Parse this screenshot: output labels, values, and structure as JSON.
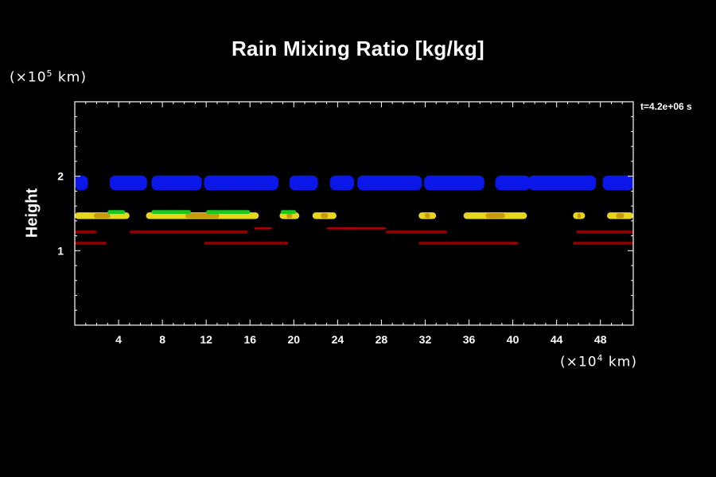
{
  "chart_data": {
    "type": "heatmap",
    "title": "Rain Mixing Ratio [kg/kg]",
    "ylabel": "Height",
    "xlabel": "",
    "x_multiplier": {
      "prefix": "(×10",
      "exp": "4",
      "suffix": " km)"
    },
    "y_multiplier": {
      "prefix": "(×10",
      "exp": "5",
      "suffix": " km)"
    },
    "time_label": "t=4.2e+06 s",
    "xlim": [
      0,
      51
    ],
    "ylim": [
      0,
      3
    ],
    "x_ticks": [
      4,
      8,
      12,
      16,
      20,
      24,
      28,
      32,
      36,
      40,
      44,
      48
    ],
    "x_tick_labels": [
      "4",
      "8",
      "12",
      "16",
      "20",
      "24",
      "28",
      "32",
      "36",
      "40",
      "44",
      "48"
    ],
    "y_ticks": [
      1,
      2
    ],
    "y_tick_labels": [
      "1",
      "2"
    ],
    "colors": {
      "high": "#0b17e8",
      "mid_yellow": "#e6d620",
      "mid_orange": "#c89a14",
      "mid_green": "#19c819",
      "low": "#8c0000",
      "low_dot": "#a80000"
    },
    "bands": [
      {
        "level": "high",
        "y": 1.91,
        "thickness": 0.2,
        "segments": [
          [
            0.0,
            1.2
          ],
          [
            3.2,
            6.6
          ],
          [
            7.0,
            11.6
          ],
          [
            11.8,
            17.3
          ],
          [
            16.2,
            18.6
          ],
          [
            19.6,
            22.2
          ],
          [
            23.3,
            25.5
          ],
          [
            25.8,
            31.7
          ],
          [
            31.9,
            37.4
          ],
          [
            38.4,
            41.6
          ],
          [
            41.4,
            47.6
          ],
          [
            48.2,
            51.0
          ]
        ]
      },
      {
        "level": "mid_yellow",
        "y": 1.47,
        "thickness": 0.09,
        "segments": [
          [
            0.0,
            5.0
          ],
          [
            6.5,
            16.8
          ],
          [
            18.7,
            20.5
          ],
          [
            21.7,
            23.9
          ],
          [
            31.4,
            33.0
          ],
          [
            35.5,
            41.3
          ],
          [
            45.5,
            46.6
          ],
          [
            48.6,
            51.0
          ]
        ]
      },
      {
        "level": "mid_green",
        "y": 1.52,
        "thickness": 0.05,
        "segments": [
          [
            3.0,
            4.6
          ],
          [
            7.0,
            10.6
          ],
          [
            12.0,
            16.0
          ],
          [
            18.8,
            20.2
          ]
        ]
      },
      {
        "level": "low",
        "y": 1.1,
        "thickness": 0.04,
        "segments": [
          [
            0.0,
            2.9
          ],
          [
            11.8,
            19.5
          ],
          [
            31.4,
            40.5
          ],
          [
            45.5,
            51.0
          ]
        ]
      },
      {
        "level": "low",
        "y": 1.25,
        "thickness": 0.04,
        "segments": [
          [
            0.0,
            2.0
          ],
          [
            5.0,
            12.6
          ],
          [
            12.2,
            15.8
          ],
          [
            28.4,
            34.0
          ],
          [
            45.8,
            51.0
          ]
        ]
      },
      {
        "level": "low_dot",
        "y": 1.3,
        "thickness": 0.03,
        "segments": [
          [
            16.4,
            18.0
          ],
          [
            23.0,
            25.6
          ],
          [
            25.0,
            28.4
          ]
        ]
      }
    ]
  }
}
